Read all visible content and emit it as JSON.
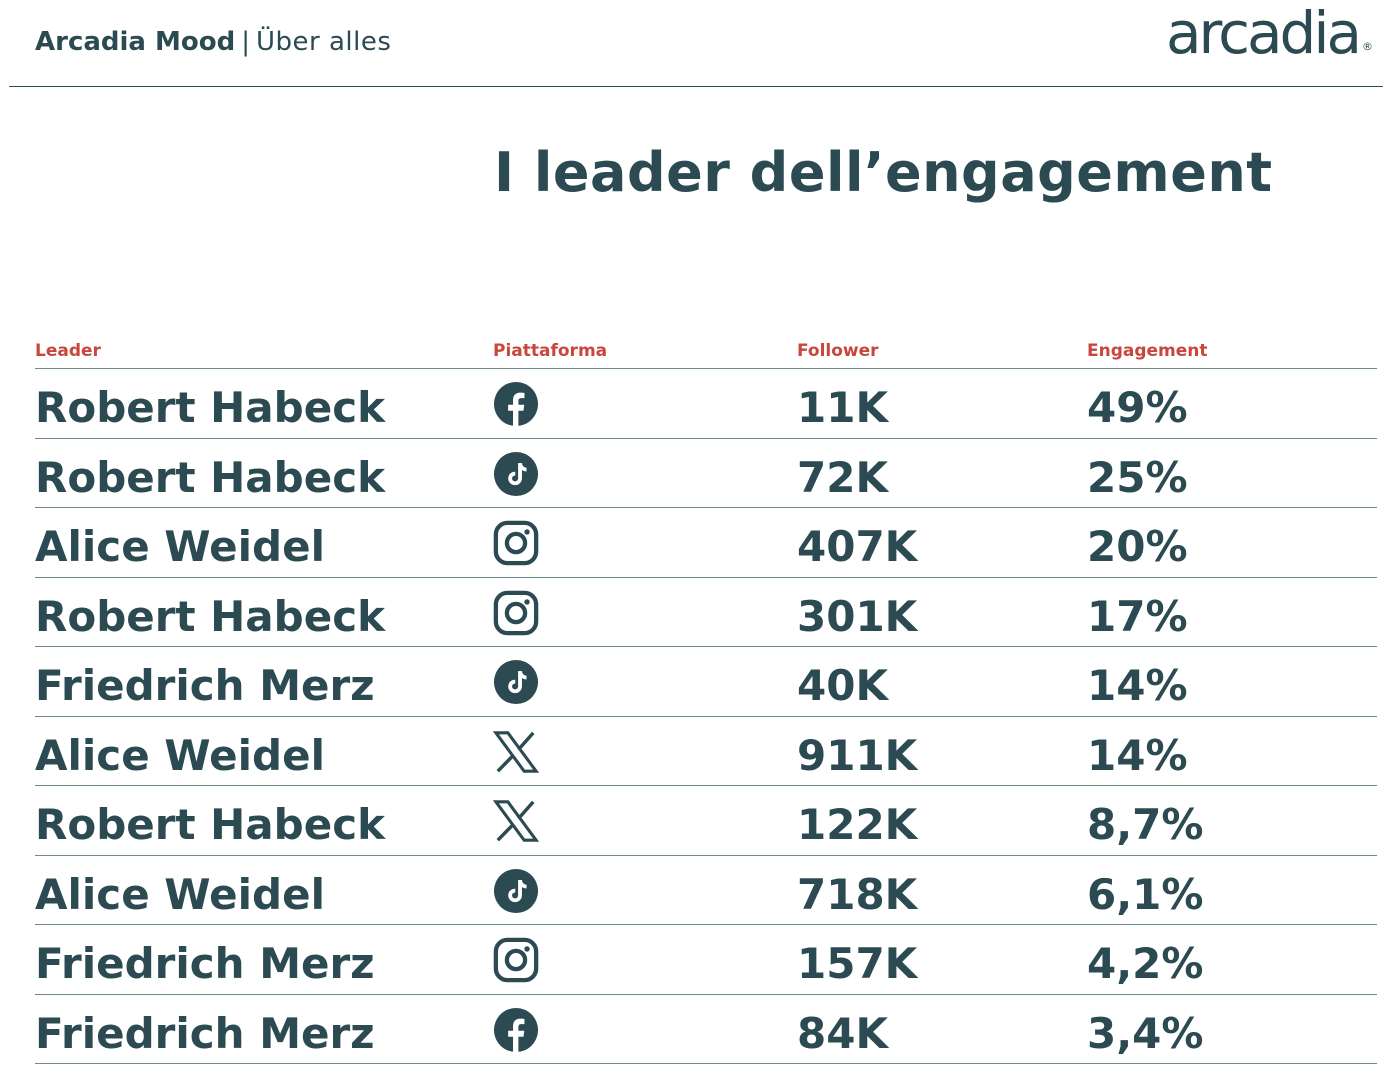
{
  "header": {
    "brand_name": "Arcadia Mood",
    "separator": "|",
    "subtitle": "Über alles",
    "logo_text": "arcadia",
    "logo_mark": "®"
  },
  "title": "I leader dell’engagement",
  "table": {
    "columns": [
      "Leader",
      "Piattaforma",
      "Follower",
      "Engagement"
    ],
    "rows": [
      {
        "leader": "Robert Habeck",
        "platform_icon": "facebook-icon",
        "follower": "11K",
        "engagement": "49%"
      },
      {
        "leader": "Robert Habeck",
        "platform_icon": "tiktok-icon",
        "follower": "72K",
        "engagement": "25%"
      },
      {
        "leader": "Alice Weidel",
        "platform_icon": "instagram-icon",
        "follower": "407K",
        "engagement": "20%"
      },
      {
        "leader": "Robert Habeck",
        "platform_icon": "instagram-icon",
        "follower": "301K",
        "engagement": "17%"
      },
      {
        "leader": "Friedrich Merz",
        "platform_icon": "tiktok-icon",
        "follower": "40K",
        "engagement": "14%"
      },
      {
        "leader": "Alice Weidel",
        "platform_icon": "x-icon",
        "follower": "911K",
        "engagement": "14%"
      },
      {
        "leader": "Robert Habeck",
        "platform_icon": "x-icon",
        "follower": "122K",
        "engagement": "8,7%"
      },
      {
        "leader": "Alice Weidel",
        "platform_icon": "tiktok-icon",
        "follower": "718K",
        "engagement": "6,1%"
      },
      {
        "leader": "Friedrich Merz",
        "platform_icon": "instagram-icon",
        "follower": "157K",
        "engagement": "4,2%"
      },
      {
        "leader": "Friedrich Merz",
        "platform_icon": "facebook-icon",
        "follower": "84K",
        "engagement": "3,4%"
      }
    ]
  },
  "colors": {
    "text": "#2c4a52",
    "header_label": "#c9463d",
    "rule": "#6c8890"
  }
}
